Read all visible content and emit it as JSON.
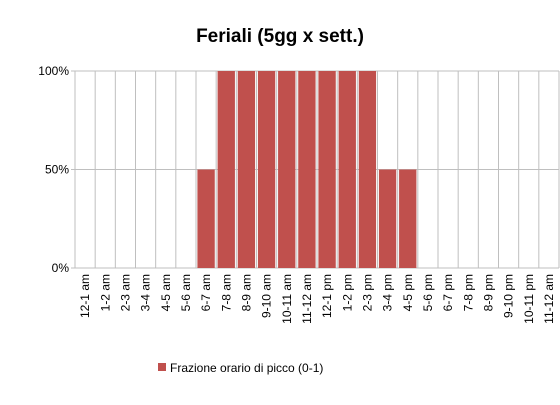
{
  "chart_data": {
    "type": "bar",
    "title": "Feriali (5gg x sett.)",
    "categories": [
      "12-1 am",
      "1-2 am",
      "2-3 am",
      "3-4 am",
      "4-5 am",
      "5-6 am",
      "6-7 am",
      "7-8 am",
      "8-9 am",
      "9-10 am",
      "10-11 am",
      "11-12 am",
      "12-1 pm",
      "1-2 pm",
      "2-3 pm",
      "3-4 pm",
      "4-5 pm",
      "5-6 pm",
      "6-7 pm",
      "7-8 pm",
      "8-9 pm",
      "9-10 pm",
      "10-11 pm",
      "11-12 am"
    ],
    "series": [
      {
        "name": "Frazione orario di picco  (0-1)",
        "color": "#c0504d",
        "values": [
          0,
          0,
          0,
          0,
          0,
          0,
          50,
          100,
          100,
          100,
          100,
          100,
          100,
          100,
          100,
          50,
          50,
          0,
          0,
          0,
          0,
          0,
          0,
          0
        ]
      }
    ],
    "ylim": [
      0,
      100
    ],
    "yticks": [
      {
        "value": 0,
        "label": "0%"
      },
      {
        "value": 50,
        "label": "50%"
      },
      {
        "value": 100,
        "label": "100%"
      }
    ],
    "grid": true,
    "legend": "bottom"
  }
}
